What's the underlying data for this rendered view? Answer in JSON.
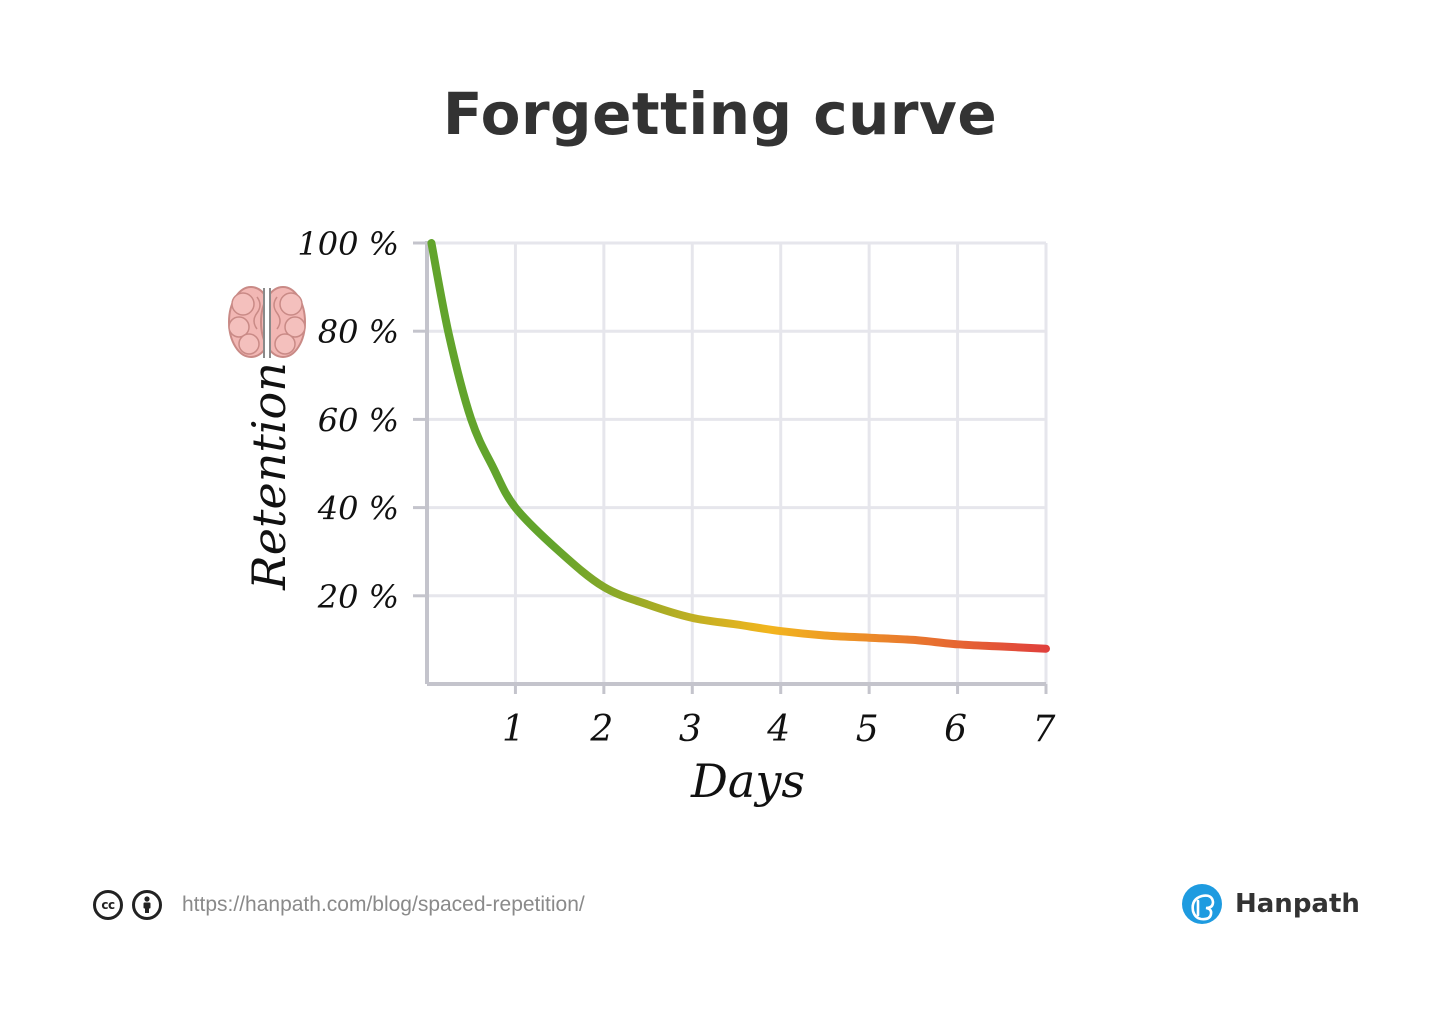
{
  "title": "Forgetting curve",
  "chart_data": {
    "type": "line",
    "title": "Forgetting curve",
    "xlabel": "Days",
    "ylabel": "Retention",
    "xlim": [
      0,
      7
    ],
    "ylim": [
      0,
      100
    ],
    "x_ticks": [
      1,
      2,
      3,
      4,
      5,
      6,
      7
    ],
    "y_ticks": [
      20,
      40,
      60,
      80,
      100
    ],
    "y_tick_labels": [
      "20 %",
      "40 %",
      "60 %",
      "80 %",
      "100 %"
    ],
    "grid": true,
    "line_color_gradient": [
      "#62a42c",
      "#f2b51e",
      "#e0403c"
    ],
    "series": [
      {
        "x": [
          0.05,
          0.25,
          0.5,
          0.75,
          1,
          1.5,
          2,
          2.5,
          3,
          3.5,
          4,
          4.5,
          5,
          5.5,
          6,
          6.5,
          7
        ],
        "y": [
          100,
          79,
          60,
          49,
          40,
          30,
          22,
          18,
          15,
          13.5,
          12,
          11,
          10.5,
          10,
          9,
          8.5,
          8
        ]
      }
    ]
  },
  "footer": {
    "license_icons": [
      "creative-commons-icon",
      "attribution-icon"
    ],
    "cc_text": "cc",
    "source_url": "https://hanpath.com/blog/spaced-repetition/",
    "brand_name": "Hanpath",
    "brand_color": "#1e9be0"
  }
}
